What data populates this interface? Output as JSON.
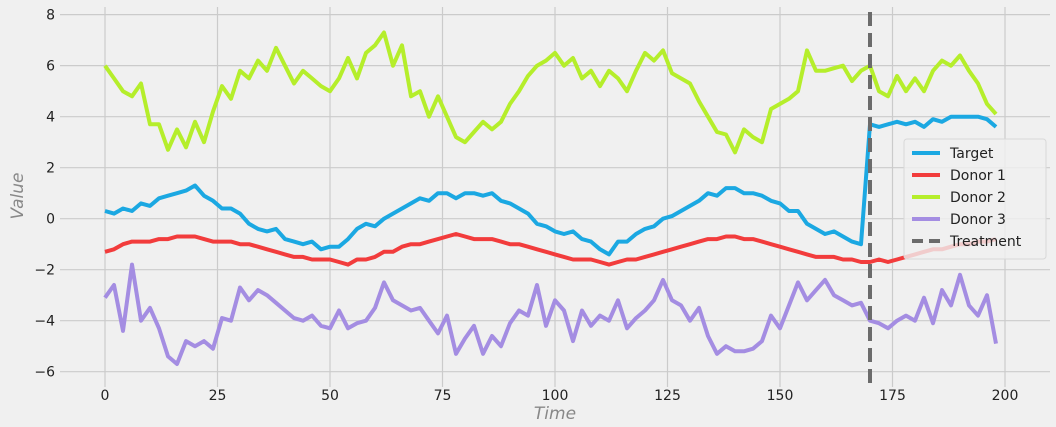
{
  "chart_data": {
    "type": "line",
    "title": "",
    "xlabel": "Time",
    "ylabel": "Value",
    "xlim": [
      -10,
      210
    ],
    "ylim": [
      -6.6,
      8.3
    ],
    "xticks": [
      0,
      25,
      50,
      75,
      100,
      125,
      150,
      175,
      200
    ],
    "yticks": [
      -6,
      -4,
      -2,
      0,
      2,
      4,
      6,
      8
    ],
    "grid": true,
    "legend_position": "center-right",
    "x_step": 2,
    "series": [
      {
        "name": "Target",
        "color": "#1ba8e2",
        "values": [
          0.3,
          0.2,
          0.4,
          0.3,
          0.6,
          0.5,
          0.8,
          0.9,
          1.0,
          1.1,
          1.3,
          0.9,
          0.7,
          0.4,
          0.4,
          0.2,
          -0.2,
          -0.4,
          -0.5,
          -0.4,
          -0.8,
          -0.9,
          -1.0,
          -0.9,
          -1.2,
          -1.1,
          -1.1,
          -0.8,
          -0.4,
          -0.2,
          -0.3,
          0.0,
          0.2,
          0.4,
          0.6,
          0.8,
          0.7,
          1.0,
          1.0,
          0.8,
          1.0,
          1.0,
          0.9,
          1.0,
          0.7,
          0.6,
          0.4,
          0.2,
          -0.2,
          -0.3,
          -0.5,
          -0.6,
          -0.5,
          -0.8,
          -0.9,
          -1.2,
          -1.4,
          -0.9,
          -0.9,
          -0.6,
          -0.4,
          -0.3,
          0.0,
          0.1,
          0.3,
          0.5,
          0.7,
          1.0,
          0.9,
          1.2,
          1.2,
          1.0,
          1.0,
          0.9,
          0.7,
          0.6,
          0.3,
          0.3,
          -0.2,
          -0.4,
          -0.6,
          -0.5,
          -0.7,
          -0.9,
          -1.0,
          3.7,
          3.6,
          3.7,
          3.8,
          3.7,
          3.8,
          3.6,
          3.9,
          3.8,
          4.0,
          4.0,
          4.0,
          4.0,
          3.9,
          3.6
        ]
      },
      {
        "name": "Donor 1",
        "color": "#f23c3c",
        "values": [
          -1.3,
          -1.2,
          -1.0,
          -0.9,
          -0.9,
          -0.9,
          -0.8,
          -0.8,
          -0.7,
          -0.7,
          -0.7,
          -0.8,
          -0.9,
          -0.9,
          -0.9,
          -1.0,
          -1.0,
          -1.1,
          -1.2,
          -1.3,
          -1.4,
          -1.5,
          -1.5,
          -1.6,
          -1.6,
          -1.6,
          -1.7,
          -1.8,
          -1.6,
          -1.6,
          -1.5,
          -1.3,
          -1.3,
          -1.1,
          -1.0,
          -1.0,
          -0.9,
          -0.8,
          -0.7,
          -0.6,
          -0.7,
          -0.8,
          -0.8,
          -0.8,
          -0.9,
          -1.0,
          -1.0,
          -1.1,
          -1.2,
          -1.3,
          -1.4,
          -1.5,
          -1.6,
          -1.6,
          -1.6,
          -1.7,
          -1.8,
          -1.7,
          -1.6,
          -1.6,
          -1.5,
          -1.4,
          -1.3,
          -1.2,
          -1.1,
          -1.0,
          -0.9,
          -0.8,
          -0.8,
          -0.7,
          -0.7,
          -0.8,
          -0.8,
          -0.9,
          -1.0,
          -1.1,
          -1.2,
          -1.3,
          -1.4,
          -1.5,
          -1.5,
          -1.5,
          -1.6,
          -1.6,
          -1.7,
          -1.7,
          -1.6,
          -1.7,
          -1.6,
          -1.5,
          -1.4,
          -1.3,
          -1.2,
          -1.2,
          -1.1,
          -1.0,
          -1.0,
          -0.9,
          -0.9,
          -0.8
        ]
      },
      {
        "name": "Donor 2",
        "color": "#b5ee2b",
        "values": [
          6.0,
          5.5,
          5.0,
          4.8,
          5.3,
          3.7,
          3.7,
          2.7,
          3.5,
          2.8,
          3.8,
          3.0,
          4.2,
          5.2,
          4.7,
          5.8,
          5.5,
          6.2,
          5.8,
          6.7,
          6.0,
          5.3,
          5.8,
          5.5,
          5.2,
          5.0,
          5.5,
          6.3,
          5.5,
          6.5,
          6.8,
          7.3,
          6.0,
          6.8,
          4.8,
          5.0,
          4.0,
          4.8,
          4.0,
          3.2,
          3.0,
          3.4,
          3.8,
          3.5,
          3.8,
          4.5,
          5.0,
          5.6,
          6.0,
          6.2,
          6.5,
          6.0,
          6.3,
          5.5,
          5.8,
          5.2,
          5.8,
          5.5,
          5.0,
          5.8,
          6.5,
          6.2,
          6.6,
          5.7,
          5.5,
          5.3,
          4.6,
          4.0,
          3.4,
          3.3,
          2.6,
          3.5,
          3.2,
          3.0,
          4.3,
          4.5,
          4.7,
          5.0,
          6.6,
          5.8,
          5.8,
          5.9,
          6.0,
          5.4,
          5.8,
          6.0,
          5.0,
          4.8,
          5.6,
          5.0,
          5.5,
          5.0,
          5.8,
          6.2,
          6.0,
          6.4,
          5.8,
          5.3,
          4.5,
          4.1
        ]
      },
      {
        "name": "Donor 3",
        "color": "#a48de2",
        "values": [
          -3.1,
          -2.6,
          -4.4,
          -1.8,
          -4.0,
          -3.5,
          -4.3,
          -5.4,
          -5.7,
          -4.8,
          -5.0,
          -4.8,
          -5.1,
          -3.9,
          -4.0,
          -2.7,
          -3.2,
          -2.8,
          -3.0,
          -3.3,
          -3.6,
          -3.9,
          -4.0,
          -3.8,
          -4.2,
          -4.3,
          -3.6,
          -4.3,
          -4.1,
          -4.0,
          -3.5,
          -2.5,
          -3.2,
          -3.4,
          -3.6,
          -3.5,
          -4.0,
          -4.5,
          -3.8,
          -5.3,
          -4.7,
          -4.2,
          -5.3,
          -4.6,
          -5.0,
          -4.1,
          -3.6,
          -3.8,
          -2.6,
          -4.2,
          -3.2,
          -3.6,
          -4.8,
          -3.6,
          -4.2,
          -3.8,
          -4.0,
          -3.2,
          -4.3,
          -3.9,
          -3.6,
          -3.2,
          -2.4,
          -3.2,
          -3.4,
          -4.0,
          -3.5,
          -4.6,
          -5.3,
          -5.0,
          -5.2,
          -5.2,
          -5.1,
          -4.8,
          -3.8,
          -4.3,
          -3.4,
          -2.5,
          -3.2,
          -2.8,
          -2.4,
          -3.0,
          -3.2,
          -3.4,
          -3.3,
          -4.0,
          -4.1,
          -4.3,
          -4.0,
          -3.8,
          -4.0,
          -3.1,
          -4.1,
          -2.8,
          -3.4,
          -2.2,
          -3.4,
          -3.8,
          -3.0,
          -4.9
        ]
      }
    ],
    "vline": {
      "name": "Treatment",
      "x": 170,
      "color": "#6b6b6b",
      "style": "dashed"
    },
    "legend": [
      "Target",
      "Donor 1",
      "Donor 2",
      "Donor 3",
      "Treatment"
    ]
  }
}
